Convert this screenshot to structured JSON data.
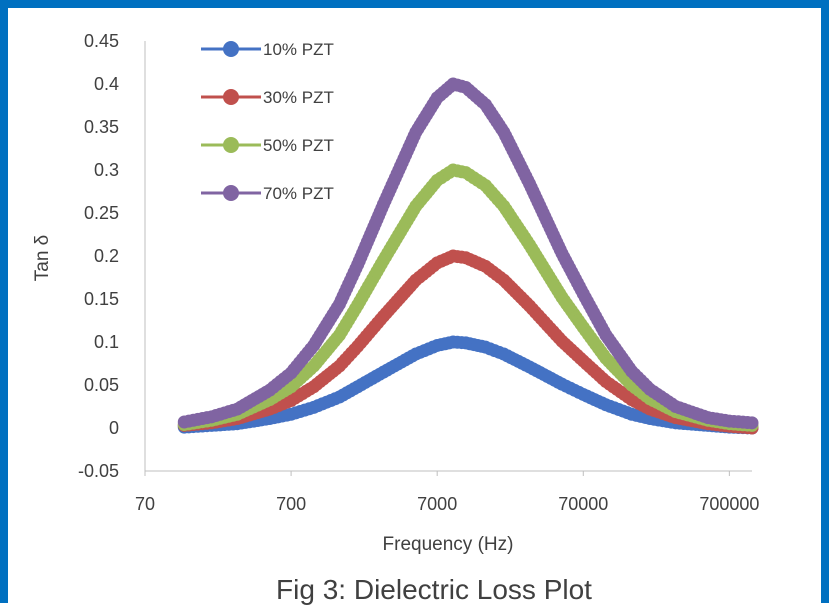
{
  "chart_data": {
    "type": "line",
    "title": "",
    "caption": "Fig 3: Dielectric Loss Plot",
    "xlabel": "Frequency (Hz)",
    "ylabel": "Tan δ",
    "x_scale": "log",
    "xlim": [
      70,
      1000000
    ],
    "ylim": [
      -0.05,
      0.45
    ],
    "x_ticks": [
      "70",
      "700",
      "7000",
      "70000",
      "700000"
    ],
    "x_tick_values": [
      70,
      700,
      7000,
      70000,
      700000
    ],
    "y_ticks": [
      "-0.05",
      "0",
      "0.05",
      "0.1",
      "0.15",
      "0.2",
      "0.25",
      "0.3",
      "0.35",
      "0.4",
      "0.45"
    ],
    "y_tick_values": [
      -0.05,
      0,
      0.05,
      0.1,
      0.15,
      0.2,
      0.25,
      0.3,
      0.35,
      0.4,
      0.45
    ],
    "grid": false,
    "legend_position": "top-left",
    "x": [
      130,
      200,
      300,
      500,
      700,
      1000,
      1500,
      2000,
      3000,
      5000,
      7000,
      9000,
      11000,
      15000,
      20000,
      30000,
      50000,
      70000,
      100000,
      150000,
      200000,
      300000,
      500000,
      700000,
      1000000
    ],
    "series": [
      {
        "name": "10% PZT",
        "color": "#4472C4",
        "values": [
          0.001,
          0.003,
          0.005,
          0.011,
          0.016,
          0.024,
          0.036,
          0.048,
          0.065,
          0.086,
          0.096,
          0.1,
          0.099,
          0.094,
          0.086,
          0.071,
          0.051,
          0.039,
          0.027,
          0.016,
          0.011,
          0.006,
          0.003,
          0.001,
          0.0
        ]
      },
      {
        "name": "30% PZT",
        "color": "#C0504D",
        "values": [
          0.003,
          0.006,
          0.011,
          0.022,
          0.032,
          0.048,
          0.072,
          0.095,
          0.13,
          0.172,
          0.192,
          0.2,
          0.198,
          0.188,
          0.172,
          0.142,
          0.101,
          0.078,
          0.054,
          0.033,
          0.022,
          0.012,
          0.005,
          0.002,
          0.0
        ]
      },
      {
        "name": "50% PZT",
        "color": "#9BBB59",
        "values": [
          0.004,
          0.009,
          0.016,
          0.033,
          0.048,
          0.072,
          0.108,
          0.143,
          0.195,
          0.258,
          0.288,
          0.3,
          0.297,
          0.282,
          0.258,
          0.213,
          0.152,
          0.117,
          0.081,
          0.05,
          0.034,
          0.019,
          0.009,
          0.005,
          0.003
        ]
      },
      {
        "name": "70% PZT",
        "color": "#8064A2",
        "values": [
          0.007,
          0.013,
          0.022,
          0.044,
          0.064,
          0.096,
          0.144,
          0.19,
          0.26,
          0.344,
          0.384,
          0.4,
          0.396,
          0.376,
          0.344,
          0.284,
          0.203,
          0.156,
          0.108,
          0.066,
          0.045,
          0.025,
          0.012,
          0.008,
          0.006
        ]
      }
    ]
  }
}
